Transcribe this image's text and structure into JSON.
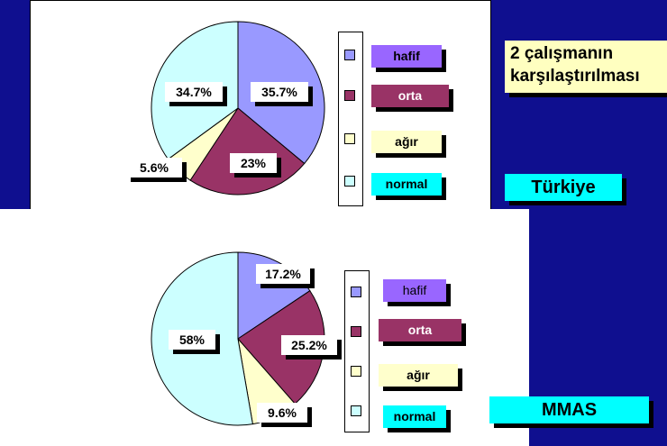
{
  "title": {
    "line1": "2 çalışmanın",
    "line2": "karşılaştırılması"
  },
  "legend_labels": {
    "hafif": "hafif",
    "orta": "orta",
    "agir": "ağır",
    "normal": "normal"
  },
  "colors": {
    "hafif": "#9999ff",
    "orta": "#993366",
    "agir": "#ffffcc",
    "normal": "#ccffff"
  },
  "chart_data": [
    {
      "type": "pie",
      "group_label": "Türkiye",
      "slices": [
        {
          "name": "hafif",
          "value": 35.7,
          "label": "35.7%"
        },
        {
          "name": "orta",
          "value": 23,
          "label": "23%"
        },
        {
          "name": "ağır",
          "value": 5.6,
          "label": "5.6%"
        },
        {
          "name": "normal",
          "value": 34.7,
          "label": "34.7%"
        }
      ]
    },
    {
      "type": "pie",
      "group_label": "MMAS",
      "slices": [
        {
          "name": "hafif",
          "value": 17.2,
          "label": "17.2%"
        },
        {
          "name": "orta",
          "value": 25.2,
          "label": "25.2%"
        },
        {
          "name": "ağır",
          "value": 9.6,
          "label": "9.6%"
        },
        {
          "name": "normal",
          "value": 58,
          "label": "58%"
        }
      ]
    }
  ]
}
